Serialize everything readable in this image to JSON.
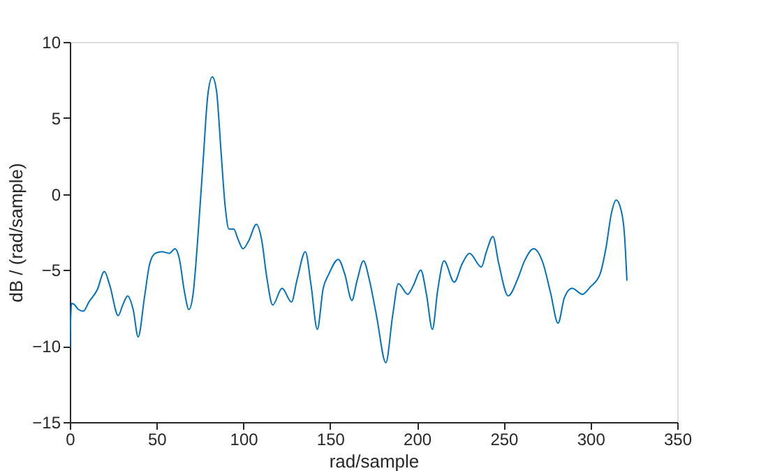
{
  "chart_data": {
    "type": "line",
    "xlabel": "rad/sample",
    "ylabel": "dB / (rad/sample)",
    "xlim": [
      0,
      350
    ],
    "ylim": [
      -15,
      10
    ],
    "xticks": [
      0,
      50,
      100,
      150,
      200,
      250,
      300,
      350
    ],
    "yticks": [
      -15,
      -10,
      -5,
      0,
      5,
      10
    ],
    "grid": false,
    "series": [
      {
        "color": "#0072bd",
        "x": [
          0,
          1,
          2.4,
          5,
          7.8,
          11,
          15.8,
          19.9,
          23,
          27.9,
          30.5,
          33.3,
          36.5,
          39.4,
          43,
          46,
          49.3,
          53,
          57.4,
          60.6,
          63,
          66,
          68.6,
          71,
          74,
          77,
          79.5,
          82.1,
          84.5,
          87,
          89.5,
          91.7,
          94.4,
          97,
          99.8,
          103,
          107.5,
          110.5,
          113.5,
          116.9,
          122.3,
          127.7,
          131,
          135.7,
          139,
          142.6,
          146,
          149.1,
          154.7,
          158.5,
          162.5,
          165.5,
          169.2,
          172.5,
          176.7,
          182.1,
          186,
          189.3,
          194.7,
          198,
          202.2,
          205.5,
          208.9,
          212,
          215.6,
          221.5,
          226,
          230.3,
          237.1,
          240,
          243.8,
          247,
          252.6,
          258,
          262,
          267.3,
          272.5,
          277,
          281.3,
          285,
          289.4,
          295.3,
          300,
          305.4,
          309,
          312,
          314.8,
          317.5,
          319.6,
          321
        ],
        "values": [
          -10.1,
          -7.2,
          -7.25,
          -7.6,
          -7.7,
          -7.1,
          -6.3,
          -5.1,
          -6.0,
          -8.0,
          -7.3,
          -6.7,
          -7.6,
          -9.4,
          -6.8,
          -4.6,
          -3.9,
          -3.8,
          -3.9,
          -3.6,
          -4.2,
          -6.4,
          -7.6,
          -6.6,
          -2.5,
          2.5,
          6.5,
          7.7,
          6.8,
          3.0,
          -0.8,
          -2.3,
          -2.3,
          -3.0,
          -3.6,
          -3.1,
          -2.0,
          -3.0,
          -5.5,
          -7.3,
          -6.2,
          -7.1,
          -5.6,
          -3.8,
          -6.0,
          -8.9,
          -6.2,
          -5.3,
          -4.3,
          -5.3,
          -7.0,
          -5.7,
          -4.4,
          -5.6,
          -8.0,
          -11.1,
          -8.0,
          -5.9,
          -6.6,
          -6.0,
          -5.0,
          -6.6,
          -8.9,
          -6.3,
          -4.4,
          -5.8,
          -4.6,
          -3.9,
          -4.8,
          -3.8,
          -2.8,
          -4.5,
          -6.7,
          -5.6,
          -4.4,
          -3.6,
          -4.5,
          -6.5,
          -8.5,
          -6.8,
          -6.2,
          -6.6,
          -6.1,
          -5.3,
          -3.5,
          -1.3,
          -0.4,
          -1.0,
          -2.7,
          -5.7
        ]
      }
    ]
  }
}
